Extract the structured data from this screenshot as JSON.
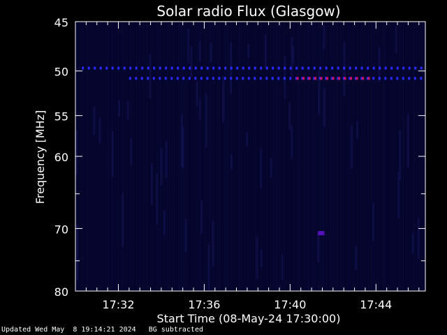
{
  "chart_data": {
    "type": "heatmap",
    "title": "Solar radio Flux (Glasgow)",
    "xlabel": "Start Time (08-May-24 17:30:00)",
    "ylabel": "Frequency [MHz]",
    "x_range_minutes": [
      0,
      16.3
    ],
    "x_ticks": [
      {
        "minute": 2,
        "label": "17:32"
      },
      {
        "minute": 6,
        "label": "17:36"
      },
      {
        "minute": 10,
        "label": "17:40"
      },
      {
        "minute": 14,
        "label": "17:44"
      }
    ],
    "y_range_mhz": [
      45,
      80
    ],
    "y_log_scale": true,
    "y_ticks": [
      {
        "mhz": 45,
        "label": "45"
      },
      {
        "mhz": 50,
        "label": "50"
      },
      {
        "mhz": 55,
        "label": "55"
      },
      {
        "mhz": 60,
        "label": "60"
      },
      {
        "mhz": 70,
        "label": "70"
      },
      {
        "mhz": 80,
        "label": "80"
      }
    ],
    "y_minor_ticks_mhz": [
      65,
      75
    ],
    "background_color": "#04042a",
    "features": [
      {
        "name": "interference-band-49.7",
        "mhz": 49.7,
        "minute_start": 0.3,
        "minute_end": 16.3,
        "color": "#2a2aff",
        "dashed": true
      },
      {
        "name": "interference-band-50.8",
        "mhz": 50.8,
        "minute_start": 2.5,
        "minute_end": 16.3,
        "color": "#2a2aff",
        "dashed": true
      },
      {
        "name": "intense-band-50.8",
        "mhz": 50.8,
        "minute_start": 10.3,
        "minute_end": 13.8,
        "color": "#cc1166",
        "dashed": true
      },
      {
        "name": "blob-70.7",
        "mhz": 70.7,
        "minute_start": 11.3,
        "minute_end": 11.6,
        "color": "#5511bb",
        "dashed": false
      }
    ]
  },
  "footer": {
    "updated": "Updated Wed May  8 19:14:21 2024",
    "note": "BG subtracted"
  }
}
